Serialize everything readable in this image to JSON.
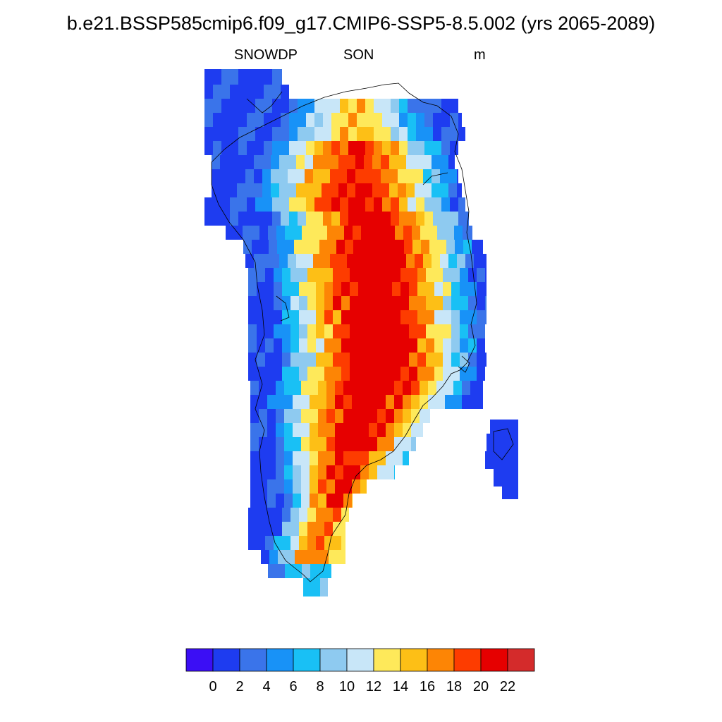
{
  "title": "b.e21.BSSP585cmip6.f09_g17.CMIP6-SSP5-8.5.002 (yrs 2065-2089)",
  "variable": "SNOWDP",
  "season": "SON",
  "units": "m",
  "colorbar": {
    "colors": [
      "#3b0ef5",
      "#1e3cf0",
      "#3a74ea",
      "#1892f7",
      "#19c0f5",
      "#8ecaf0",
      "#c8e6f8",
      "#fee95a",
      "#fdbf16",
      "#fd8505",
      "#fd3c00",
      "#e60000",
      "#d42b2b"
    ],
    "labels": [
      "0",
      "2",
      "4",
      "6",
      "8",
      "10",
      "12",
      "14",
      "16",
      "18",
      "20",
      "22"
    ]
  },
  "chart_data": {
    "type": "heatmap",
    "title": "b.e21.BSSP585cmip6.f09_g17.CMIP6-SSP5-8.5.002 (yrs 2065-2089)",
    "variable": "SNOWDP",
    "season": "SON",
    "units": "m",
    "levels": [
      0,
      2,
      4,
      6,
      8,
      10,
      12,
      14,
      16,
      18,
      20,
      22
    ],
    "region": "Greenland",
    "max_bin": "20-22",
    "min_bin": "0-2"
  }
}
